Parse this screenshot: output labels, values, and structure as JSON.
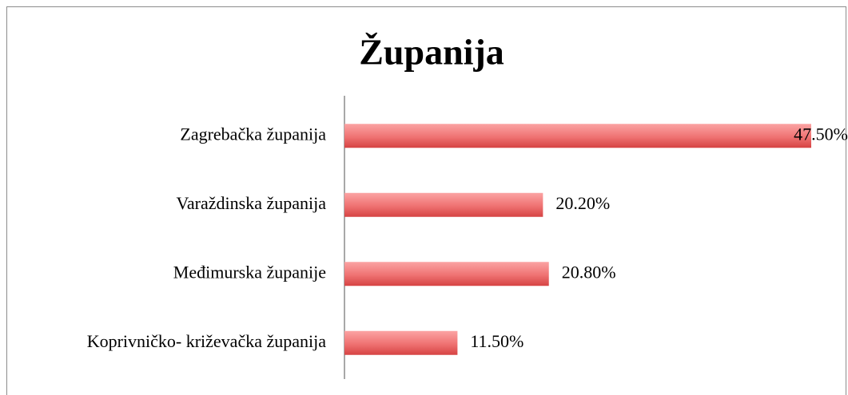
{
  "chart_data": {
    "type": "bar",
    "orientation": "horizontal",
    "title": "Županija",
    "categories": [
      "Zagrebačka županija",
      "Varaždinska županija",
      "Međimurska županije",
      "Koprivničko- križevačka županija"
    ],
    "values": [
      47.5,
      20.2,
      20.8,
      11.5
    ],
    "value_labels": [
      "47.50%",
      "20.20%",
      "20.80%",
      "11.50%"
    ],
    "color": "#e05555"
  }
}
